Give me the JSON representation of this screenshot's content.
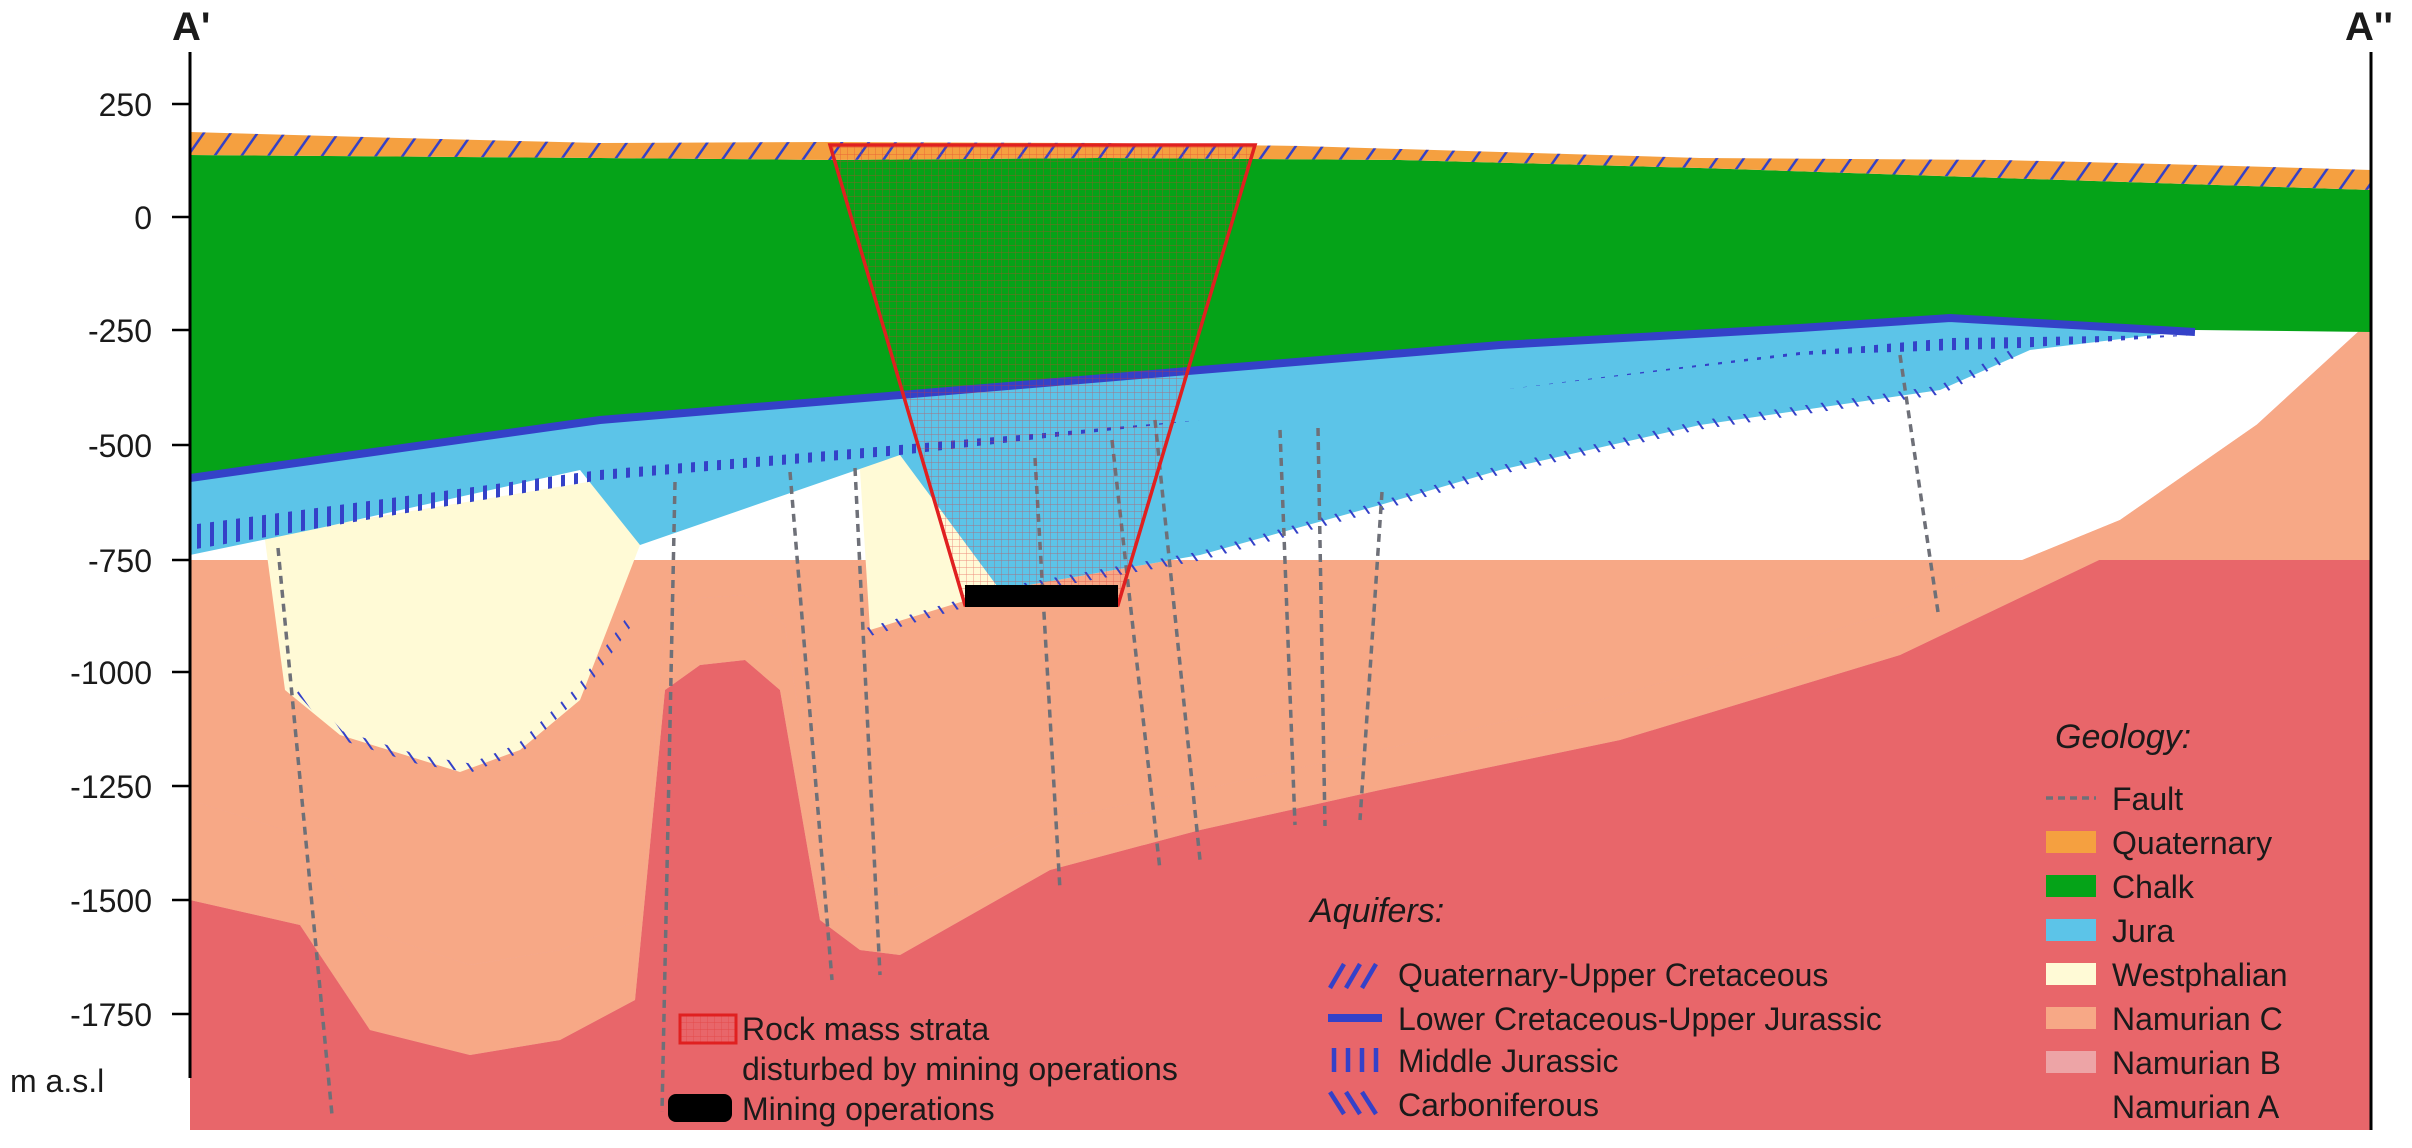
{
  "labels": {
    "section_start": "A'",
    "section_end": "A''",
    "y_unit": "m a.s.l"
  },
  "y_axis": {
    "ticks": [
      "250",
      "0",
      "-250",
      "-500",
      "-750",
      "-1000",
      "-1250",
      "-1500",
      "-1750"
    ]
  },
  "aquifers": {
    "title": "Aquifers:",
    "items": [
      "Quaternary-Upper Cretaceous",
      "Lower Cretaceous-Upper Jurassic",
      "Middle Jurassic",
      "Carboniferous"
    ]
  },
  "geology": {
    "title": "Geology:",
    "items": [
      "Fault",
      "Quaternary",
      "Chalk",
      "Jura",
      "Westphalian",
      "Namurian C",
      "Namurian B",
      "Namurian A"
    ]
  },
  "mining": {
    "disturbed_line1": "Rock mass strata",
    "disturbed_line2": "disturbed by mining operations",
    "operations": "Mining operations"
  },
  "colors": {
    "quaternary": "#f5a040",
    "chalk": "#05a318",
    "jura": "#5cc4e8",
    "westphalian": "#fffad6",
    "namurian_c": "#f7a886",
    "namurian_b": "#eda4a6",
    "namurian_a": "#e8666a",
    "aquifer_blue": "#3441c8",
    "disturbed": "#e02020"
  }
}
